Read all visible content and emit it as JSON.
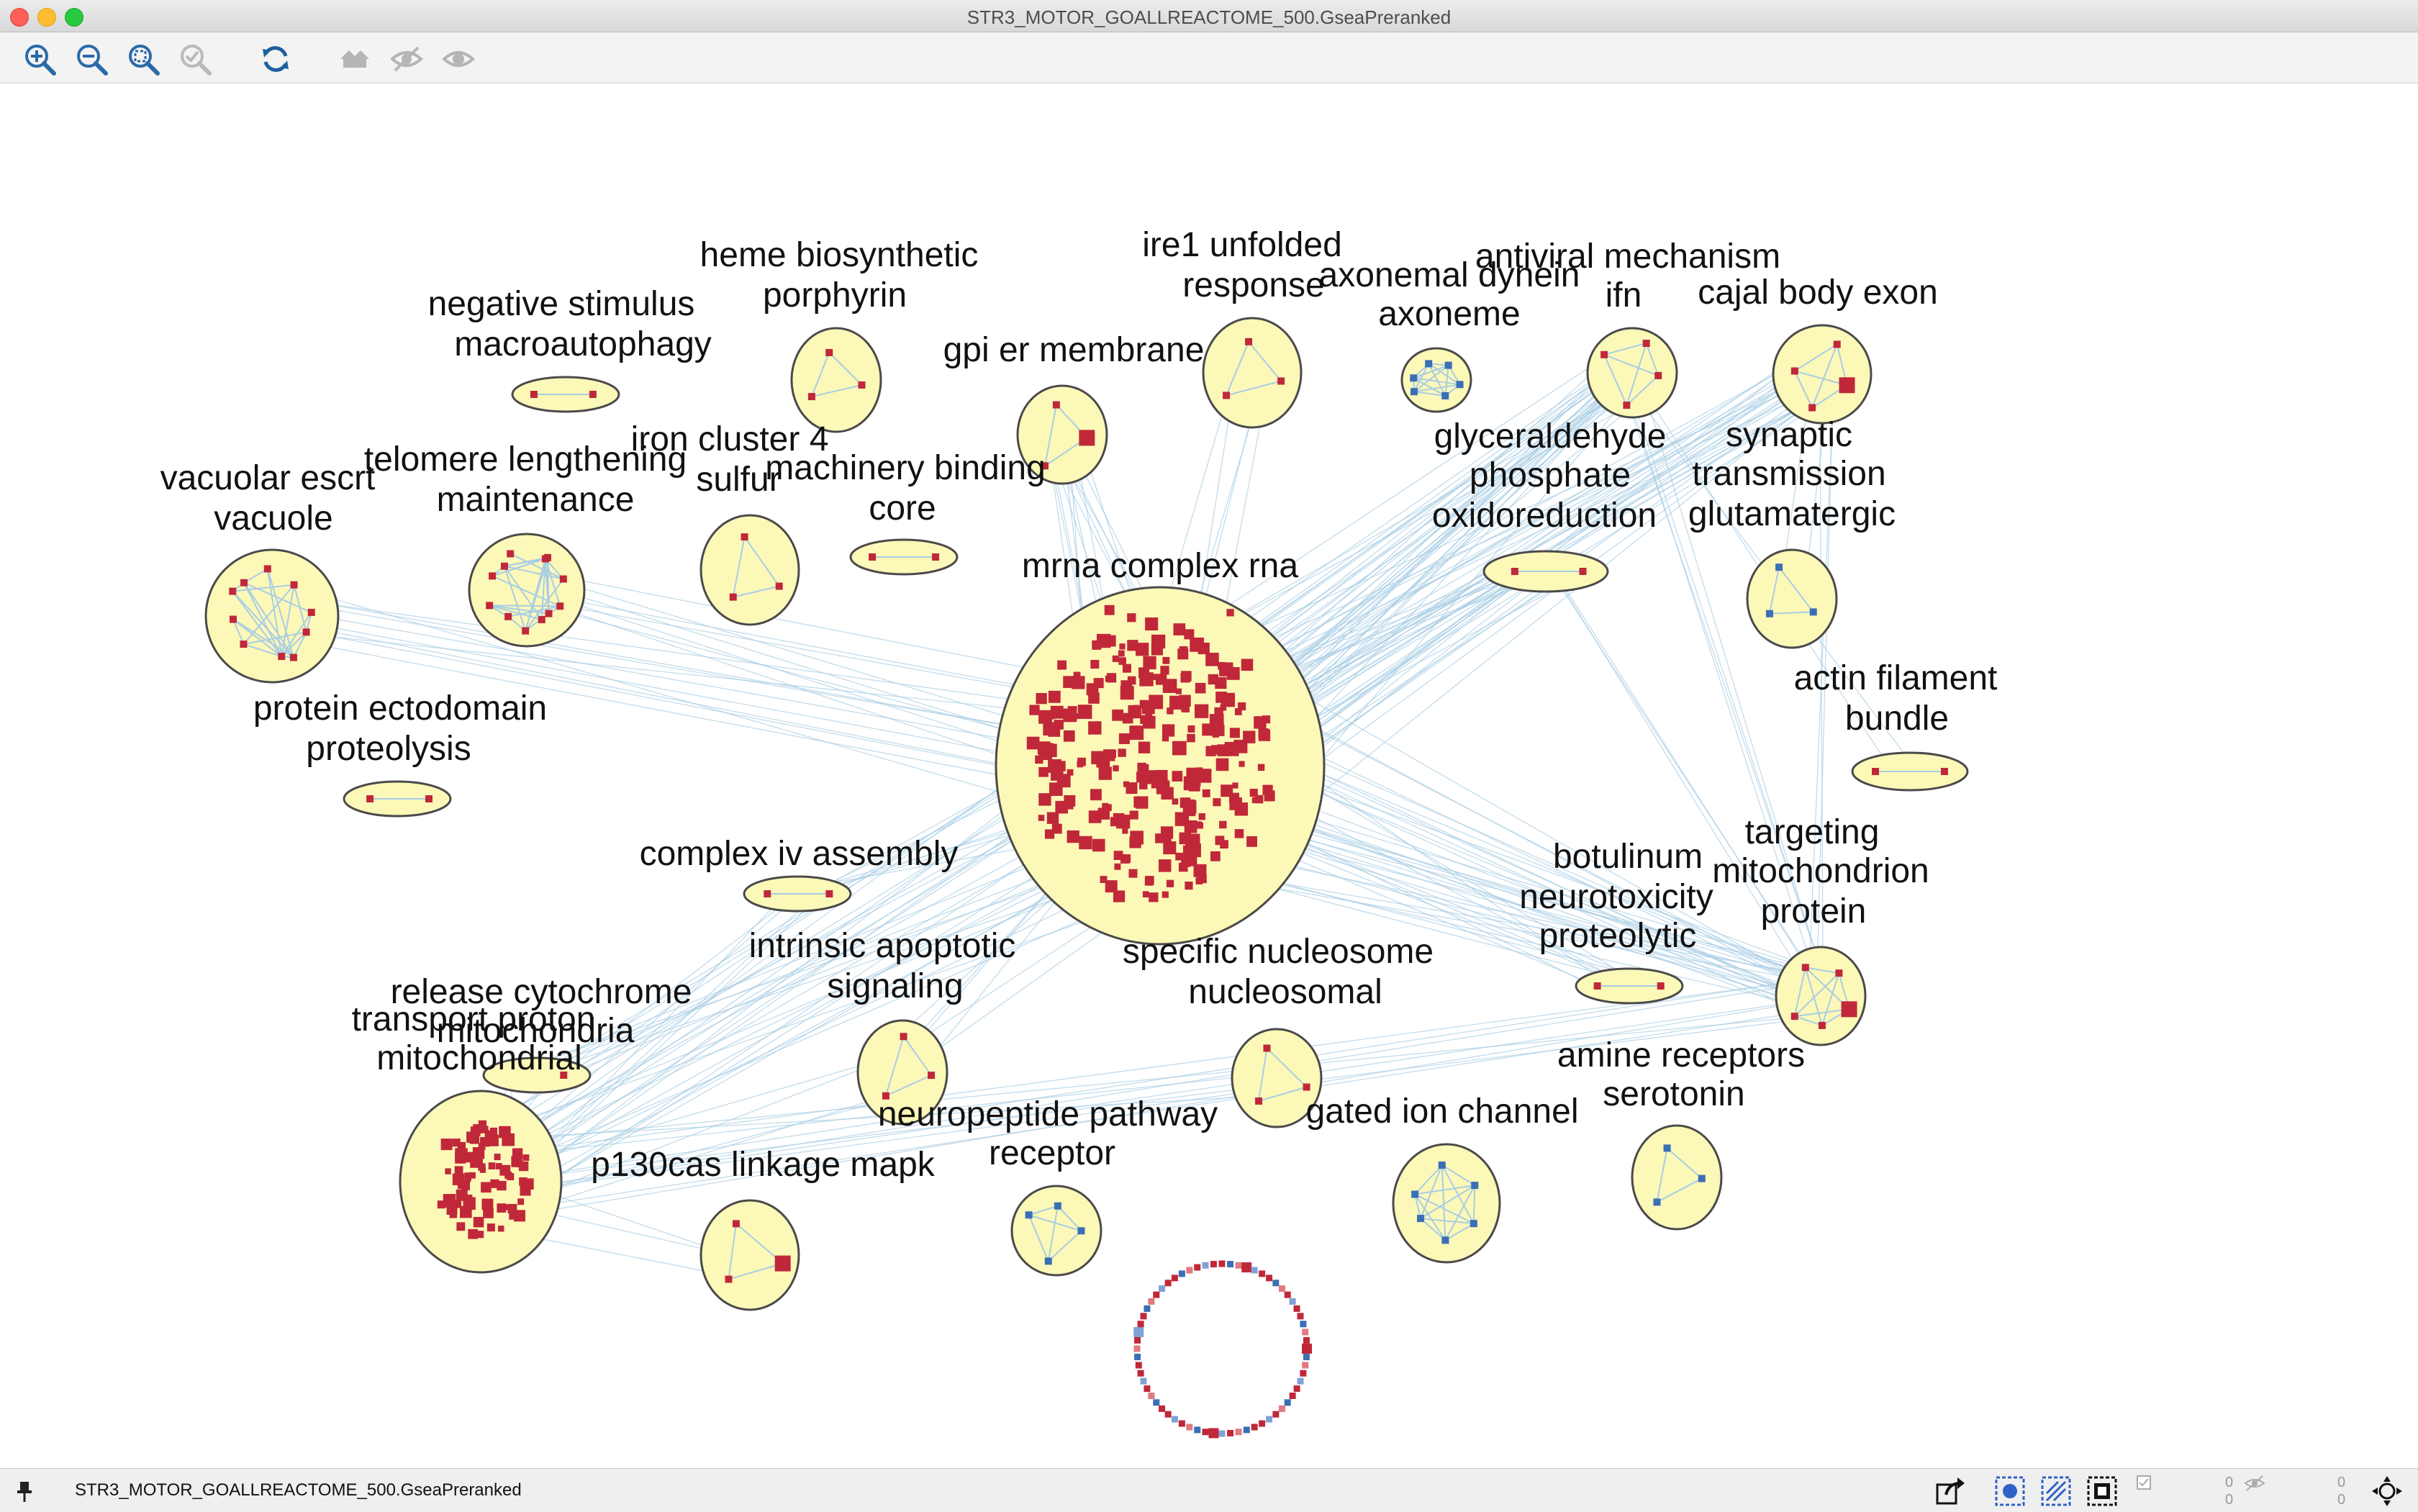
{
  "window": {
    "title": "STR3_MOTOR_GOALLREACTOME_500.GseaPreranked"
  },
  "toolbar": {
    "buttons": [
      {
        "name": "zoom-in-icon"
      },
      {
        "name": "zoom-out-icon"
      },
      {
        "name": "zoom-fit-icon"
      },
      {
        "name": "zoom-selected-icon"
      },
      {
        "name": "refresh-icon"
      },
      {
        "name": "home-icon"
      },
      {
        "name": "hide-icon"
      },
      {
        "name": "show-icon"
      }
    ]
  },
  "colors": {
    "cluster_fill": "#fcf8b8",
    "cluster_stroke": "#4a4a4a",
    "edge": "#a8cde4",
    "node_up": "#c0283a",
    "node_down": "#3a6fb5"
  },
  "network": {
    "clusters": [
      {
        "id": "mrna",
        "label": [
          "mrna complex rna"
        ]
      },
      {
        "id": "vacuolar",
        "label": [
          "vacuolar escrt",
          "vacuole"
        ]
      },
      {
        "id": "telomere",
        "label": [
          "telomere lengthening",
          "maintenance"
        ]
      },
      {
        "id": "iron",
        "label": [
          "iron cluster 4",
          "sulfur"
        ]
      },
      {
        "id": "negative",
        "label": [
          "negative stimulus",
          "macroautophagy"
        ]
      },
      {
        "id": "heme",
        "label": [
          "heme biosynthetic",
          "porphyrin"
        ]
      },
      {
        "id": "gpi",
        "label": [
          "gpi er membrane"
        ]
      },
      {
        "id": "machinery",
        "label": [
          "machinery binding",
          "core"
        ]
      },
      {
        "id": "ire1",
        "label": [
          "ire1 unfolded",
          "response"
        ]
      },
      {
        "id": "axonemal",
        "label": [
          "axonemal dynein",
          "axoneme"
        ]
      },
      {
        "id": "antiviral",
        "label": [
          "antiviral mechanism",
          "ifn"
        ]
      },
      {
        "id": "cajal",
        "label": [
          "cajal body exon"
        ]
      },
      {
        "id": "glyceraldehyde",
        "label": [
          "glyceraldehyde",
          "phosphate",
          "oxidoreduction"
        ]
      },
      {
        "id": "synaptic",
        "label": [
          "synaptic",
          "transmission",
          "glutamatergic"
        ]
      },
      {
        "id": "actin",
        "label": [
          "actin filament",
          "bundle"
        ]
      },
      {
        "id": "protein_ecto",
        "label": [
          "protein ectodomain",
          "proteolysis"
        ]
      },
      {
        "id": "complex_iv",
        "label": [
          "complex iv assembly"
        ]
      },
      {
        "id": "intrinsic",
        "label": [
          "intrinsic apoptotic",
          "signaling"
        ]
      },
      {
        "id": "specific",
        "label": [
          "specific nucleosome",
          "nucleosomal"
        ]
      },
      {
        "id": "botulinum",
        "label": [
          "botulinum",
          "neurotoxicity",
          "proteolytic"
        ]
      },
      {
        "id": "targeting",
        "label": [
          "targeting",
          "mitochondrion",
          "protein"
        ]
      },
      {
        "id": "release",
        "label": [
          "release cytochrome",
          "mitochondria"
        ]
      },
      {
        "id": "transport",
        "label": [
          "transport proton",
          "mitochondrial"
        ]
      },
      {
        "id": "p130cas",
        "label": [
          "p130cas linkage mapk"
        ]
      },
      {
        "id": "neuropeptide",
        "label": [
          "neuropeptide pathway",
          "receptor"
        ]
      },
      {
        "id": "gated",
        "label": [
          "gated ion channel"
        ]
      },
      {
        "id": "amine",
        "label": [
          "amine receptors",
          "serotonin"
        ]
      }
    ]
  },
  "statusbar": {
    "network_name": "STR3_MOTOR_GOALLREACTOME_500.GseaPreranked",
    "counters": [
      "0",
      "0",
      "0",
      "0"
    ],
    "icons": [
      "pin-icon",
      "export-icon",
      "select-nodes-icon",
      "select-edges-icon",
      "select-all-icon",
      "checkbox-icon",
      "hidden-icon",
      "navigate-icon"
    ]
  }
}
